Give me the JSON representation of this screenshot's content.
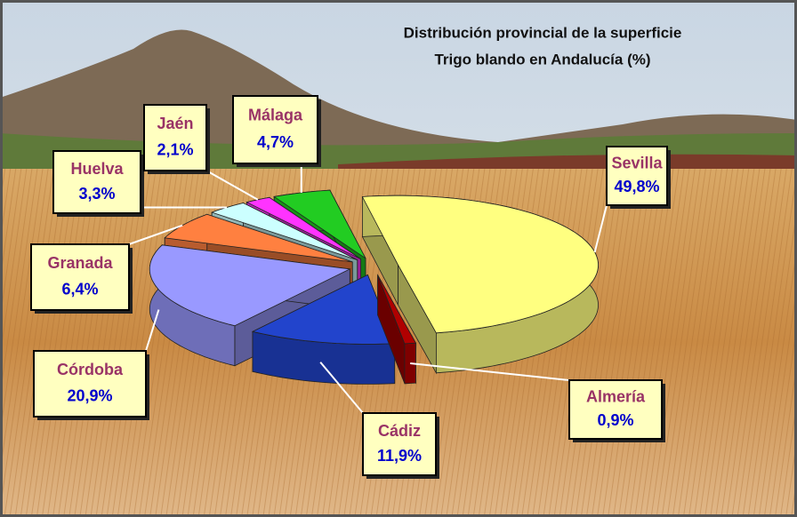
{
  "chart_data": {
    "type": "pie",
    "title": "Distribución provincial de la superficie",
    "subtitle": "Trigo blando en Andalucía (%)",
    "categories": [
      "Sevilla",
      "Almería",
      "Cádiz",
      "Córdoba",
      "Granada",
      "Huelva",
      "Jaén",
      "Málaga"
    ],
    "values": [
      49.8,
      0.9,
      11.9,
      20.9,
      6.4,
      3.3,
      2.1,
      4.7
    ],
    "value_labels": [
      "49,8%",
      "0,9%",
      "11,9%",
      "20,9%",
      "6,4%",
      "3,3%",
      "2,1%",
      "4,7%"
    ],
    "colors": [
      "#ffff80",
      "#b00000",
      "#2244cc",
      "#9999ff",
      "#ff8040",
      "#ccffff",
      "#ff33ff",
      "#22cc22"
    ]
  }
}
